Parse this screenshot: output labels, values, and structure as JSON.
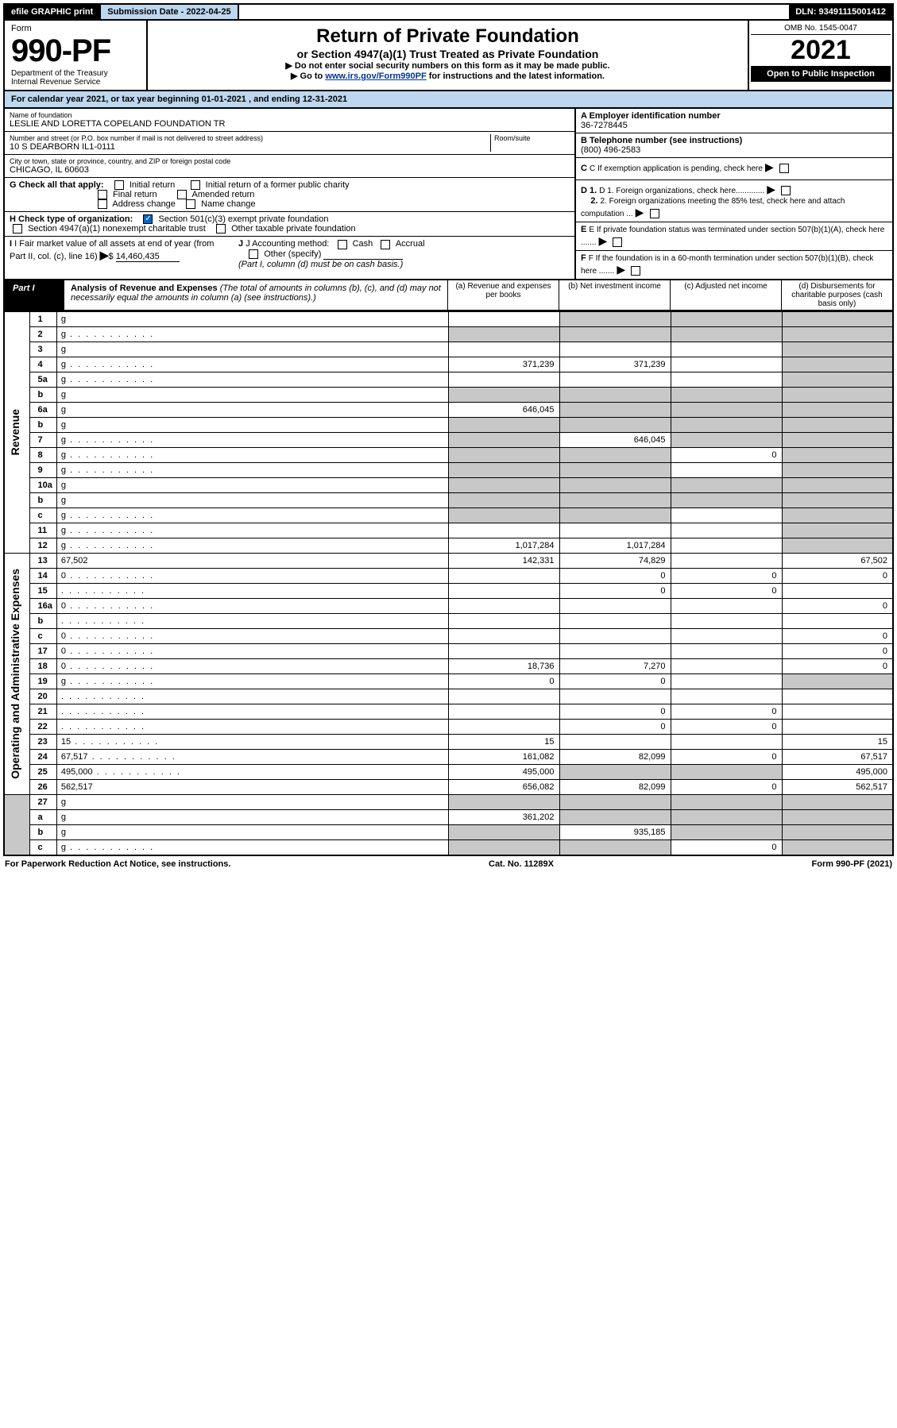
{
  "topbar": {
    "efile": "efile GRAPHIC print",
    "sub_label": "Submission Date - 2022-04-25",
    "dln": "DLN: 93491115001412"
  },
  "header": {
    "form_word": "Form",
    "form_num": "990-PF",
    "dept": "Department of the Treasury",
    "irs": "Internal Revenue Service",
    "title": "Return of Private Foundation",
    "subtitle": "or Section 4947(a)(1) Trust Treated as Private Foundation",
    "instr1": "▶ Do not enter social security numbers on this form as it may be made public.",
    "instr2_pre": "▶ Go to ",
    "instr2_link": "www.irs.gov/Form990PF",
    "instr2_post": " for instructions and the latest information.",
    "omb": "OMB No. 1545-0047",
    "year": "2021",
    "open": "Open to Public Inspection"
  },
  "cal": "For calendar year 2021, or tax year beginning 01-01-2021                       , and ending 12-31-2021",
  "entity": {
    "name_lbl": "Name of foundation",
    "name": "LESLIE AND LORETTA COPELAND FOUNDATION TR",
    "addr_lbl": "Number and street (or P.O. box number if mail is not delivered to street address)",
    "addr": "10 S DEARBORN IL1-0111",
    "room_lbl": "Room/suite",
    "city_lbl": "City or town, state or province, country, and ZIP or foreign postal code",
    "city": "CHICAGO, IL  60603",
    "ein_lbl": "A Employer identification number",
    "ein": "36-7278445",
    "phone_lbl": "B Telephone number (see instructions)",
    "phone": "(800) 496-2583",
    "c_lbl": "C If exemption application is pending, check here",
    "d1_lbl": "D 1. Foreign organizations, check here.............",
    "d2_lbl": "2. Foreign organizations meeting the 85% test, check here and attach computation ...",
    "e_lbl": "E  If private foundation status was terminated under section 507(b)(1)(A), check here .......",
    "f_lbl": "F  If the foundation is in a 60-month termination under section 507(b)(1)(B), check here .......",
    "g_lbl": "G Check all that apply:",
    "g_opts": [
      "Initial return",
      "Initial return of a former public charity",
      "Final return",
      "Amended return",
      "Address change",
      "Name change"
    ],
    "h_lbl": "H Check type of organization:",
    "h_opt1": "Section 501(c)(3) exempt private foundation",
    "h_opt2": "Section 4947(a)(1) nonexempt charitable trust",
    "h_opt3": "Other taxable private foundation",
    "i_lbl": "I Fair market value of all assets at end of year (from Part II, col. (c), line 16)",
    "i_val": "14,460,435",
    "j_lbl": "J Accounting method:",
    "j_opts": [
      "Cash",
      "Accrual"
    ],
    "j_other": "Other (specify)",
    "j_note": "(Part I, column (d) must be on cash basis.)"
  },
  "part1": {
    "label": "Part I",
    "title": "Analysis of Revenue and Expenses",
    "note": " (The total of amounts in columns (b), (c), and (d) may not necessarily equal the amounts in column (a) (see instructions).)",
    "cols": {
      "a": "(a)   Revenue and expenses per books",
      "b": "(b)   Net investment income",
      "c": "(c)   Adjusted net income",
      "d": "(d)   Disbursements for charitable purposes (cash basis only)"
    }
  },
  "side": {
    "rev": "Revenue",
    "exp": "Operating and Administrative Expenses"
  },
  "rows": [
    {
      "n": "1",
      "d": "g",
      "a": "",
      "b": "g",
      "c": "g"
    },
    {
      "n": "2",
      "d": "g",
      "a": "g",
      "b": "g",
      "c": "g",
      "dots": true
    },
    {
      "n": "3",
      "d": "g",
      "a": "",
      "b": "",
      "c": ""
    },
    {
      "n": "4",
      "d": "g",
      "a": "371,239",
      "b": "371,239",
      "c": "",
      "dots": true
    },
    {
      "n": "5a",
      "d": "g",
      "a": "",
      "b": "",
      "c": "",
      "dots": true
    },
    {
      "n": "b",
      "d": "g",
      "a": "g",
      "b": "g",
      "c": "g"
    },
    {
      "n": "6a",
      "d": "g",
      "a": "646,045",
      "b": "g",
      "c": "g"
    },
    {
      "n": "b",
      "d": "g",
      "a": "g",
      "b": "g",
      "c": "g"
    },
    {
      "n": "7",
      "d": "g",
      "a": "g",
      "b": "646,045",
      "c": "g",
      "dots": true
    },
    {
      "n": "8",
      "d": "g",
      "a": "g",
      "b": "g",
      "c": "0",
      "dots": true
    },
    {
      "n": "9",
      "d": "g",
      "a": "g",
      "b": "g",
      "c": "",
      "dots": true
    },
    {
      "n": "10a",
      "d": "g",
      "a": "g",
      "b": "g",
      "c": "g"
    },
    {
      "n": "b",
      "d": "g",
      "a": "g",
      "b": "g",
      "c": "g"
    },
    {
      "n": "c",
      "d": "g",
      "a": "g",
      "b": "g",
      "c": "",
      "dots": true
    },
    {
      "n": "11",
      "d": "g",
      "a": "",
      "b": "",
      "c": "",
      "dots": true
    },
    {
      "n": "12",
      "d": "g",
      "a": "1,017,284",
      "b": "1,017,284",
      "c": "",
      "dots": true
    }
  ],
  "exp_rows": [
    {
      "n": "13",
      "d": "67,502",
      "a": "142,331",
      "b": "74,829",
      "c": ""
    },
    {
      "n": "14",
      "d": "0",
      "a": "",
      "b": "0",
      "c": "0",
      "dots": true
    },
    {
      "n": "15",
      "d": "",
      "a": "",
      "b": "0",
      "c": "0",
      "dots": true
    },
    {
      "n": "16a",
      "d": "0",
      "a": "",
      "b": "",
      "c": "",
      "dots": true
    },
    {
      "n": "b",
      "d": "",
      "a": "",
      "b": "",
      "c": "",
      "dots": true
    },
    {
      "n": "c",
      "d": "0",
      "a": "",
      "b": "",
      "c": "",
      "dots": true
    },
    {
      "n": "17",
      "d": "0",
      "a": "",
      "b": "",
      "c": "",
      "dots": true
    },
    {
      "n": "18",
      "d": "0",
      "a": "18,736",
      "b": "7,270",
      "c": "",
      "dots": true
    },
    {
      "n": "19",
      "d": "g",
      "a": "0",
      "b": "0",
      "c": "",
      "dots": true
    },
    {
      "n": "20",
      "d": "",
      "a": "",
      "b": "",
      "c": "",
      "dots": true
    },
    {
      "n": "21",
      "d": "",
      "a": "",
      "b": "0",
      "c": "0",
      "dots": true
    },
    {
      "n": "22",
      "d": "",
      "a": "",
      "b": "0",
      "c": "0",
      "dots": true
    },
    {
      "n": "23",
      "d": "15",
      "a": "15",
      "b": "",
      "c": "",
      "dots": true
    },
    {
      "n": "24",
      "d": "67,517",
      "a": "161,082",
      "b": "82,099",
      "c": "0",
      "dots": true
    },
    {
      "n": "25",
      "d": "495,000",
      "a": "495,000",
      "b": "g",
      "c": "g",
      "dots": true
    },
    {
      "n": "26",
      "d": "562,517",
      "a": "656,082",
      "b": "82,099",
      "c": "0"
    }
  ],
  "net_rows": [
    {
      "n": "27",
      "d": "g",
      "a": "g",
      "b": "g",
      "c": "g"
    },
    {
      "n": "a",
      "d": "g",
      "a": "361,202",
      "b": "g",
      "c": "g"
    },
    {
      "n": "b",
      "d": "g",
      "a": "g",
      "b": "935,185",
      "c": "g"
    },
    {
      "n": "c",
      "d": "g",
      "a": "g",
      "b": "g",
      "c": "0",
      "dots": true
    }
  ],
  "footer": {
    "left": "For Paperwork Reduction Act Notice, see instructions.",
    "mid": "Cat. No. 11289X",
    "right": "Form 990-PF (2021)"
  }
}
